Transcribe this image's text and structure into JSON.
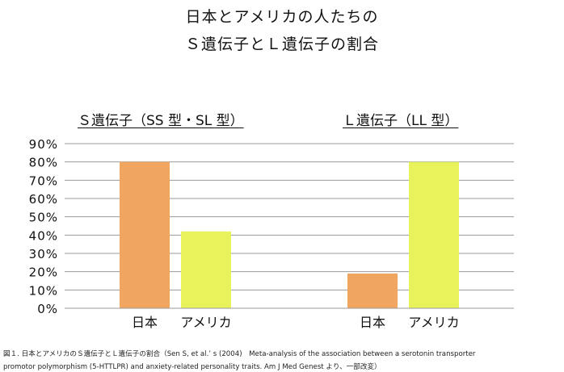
{
  "title_line1": "日本とアメリカの人たちの",
  "title_line2": "Ｓ遺伝子とＬ遺伝子の割合",
  "caption_line1": "図１. 日本とアメリカのＳ遺伝子とＬ遺伝子の割合（Sen S, et al.’ s (2004)　Meta-analysis of the association between a serotonin transporter",
  "caption_line2": "promotor polymorphism (5-HTTLPR) and anxiety-related personality traits. Am J Med Genest より、一部改変）",
  "colors": {
    "japan": "#f0a65e",
    "america": "#e8f25a",
    "grid": "#9a9a9a"
  },
  "chart_data": {
    "type": "bar",
    "groups": [
      "Ｓ遺伝子（SS 型・SL 型）",
      "Ｌ遺伝子（LL 型）"
    ],
    "categories": [
      "日本",
      "アメリカ"
    ],
    "values": [
      [
        80,
        42
      ],
      [
        19,
        80
      ]
    ],
    "yticks": [
      "0%",
      "10%",
      "20%",
      "30%",
      "40%",
      "50%",
      "60%",
      "70%",
      "80%",
      "90%"
    ],
    "ylim": [
      0,
      90
    ],
    "grid": true
  }
}
